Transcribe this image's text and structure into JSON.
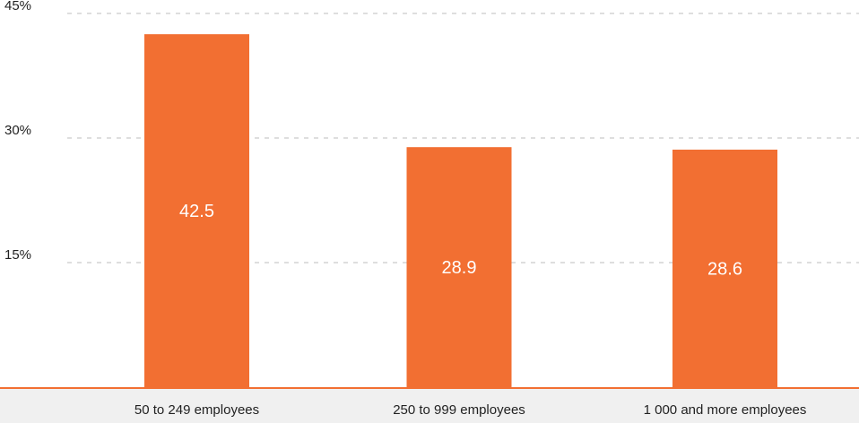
{
  "chart_data": {
    "type": "bar",
    "categories": [
      "50 to 249 employees",
      "250 to 999 employees",
      "1 000 and more employees"
    ],
    "values": [
      42.5,
      28.9,
      28.6
    ],
    "data_labels": [
      "42.5",
      "28.9",
      "28.6"
    ],
    "yticks": [
      15,
      30,
      45
    ],
    "ytick_labels": [
      "15%",
      "30%",
      "45%"
    ],
    "ylim": [
      0,
      45
    ],
    "grid": true,
    "title": "",
    "xlabel": "",
    "ylabel": "",
    "colors": {
      "bar": "#f26f32",
      "baseline": "#f26f32",
      "grid": "#bdbdbd",
      "axis_band": "#f0f0f0",
      "data_label": "#ffffff",
      "text": "#222222"
    }
  }
}
